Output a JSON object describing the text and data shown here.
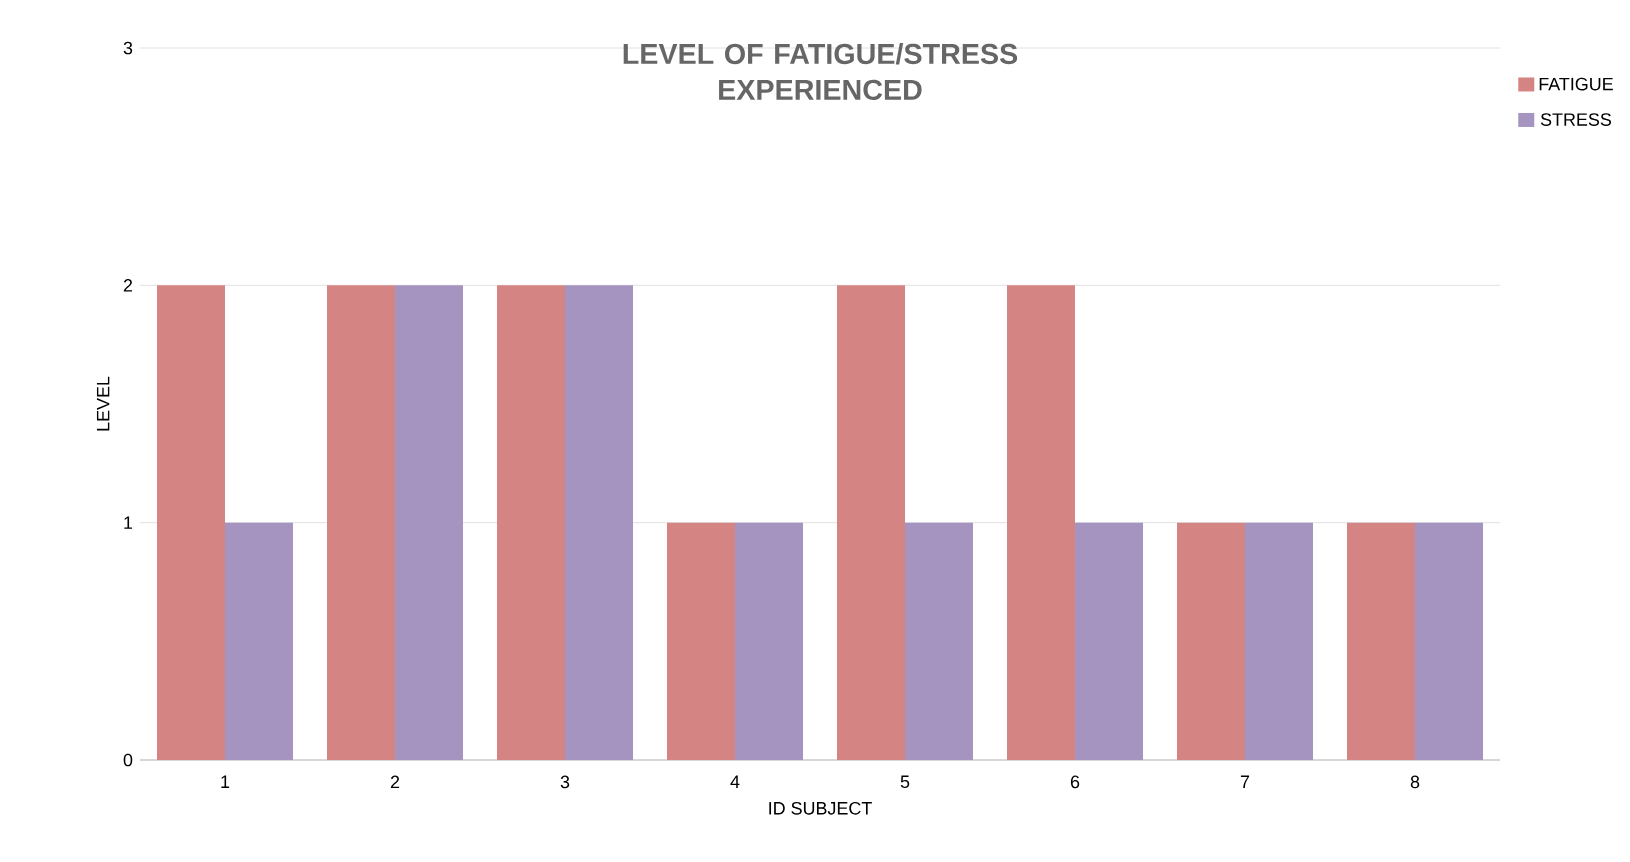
{
  "chart_data": {
    "type": "bar",
    "title": "LEVEL OF FATIGUE/STRESS EXPERIENCED",
    "xlabel": "ID SUBJECT",
    "ylabel": "LEVEL",
    "categories": [
      "1",
      "2",
      "3",
      "4",
      "5",
      "6",
      "7",
      "8"
    ],
    "series": [
      {
        "name": "FATIGUE",
        "color": "#d48482",
        "values": [
          2,
          2,
          2,
          1,
          2,
          2,
          1,
          1
        ]
      },
      {
        "name": "STRESS",
        "color": "#a594bf",
        "values": [
          1,
          2,
          2,
          1,
          1,
          1,
          1,
          1
        ]
      }
    ],
    "ylim": [
      0,
      3
    ],
    "yticks": [
      0,
      1,
      2,
      3
    ],
    "grid": "y",
    "legend": "top right"
  }
}
